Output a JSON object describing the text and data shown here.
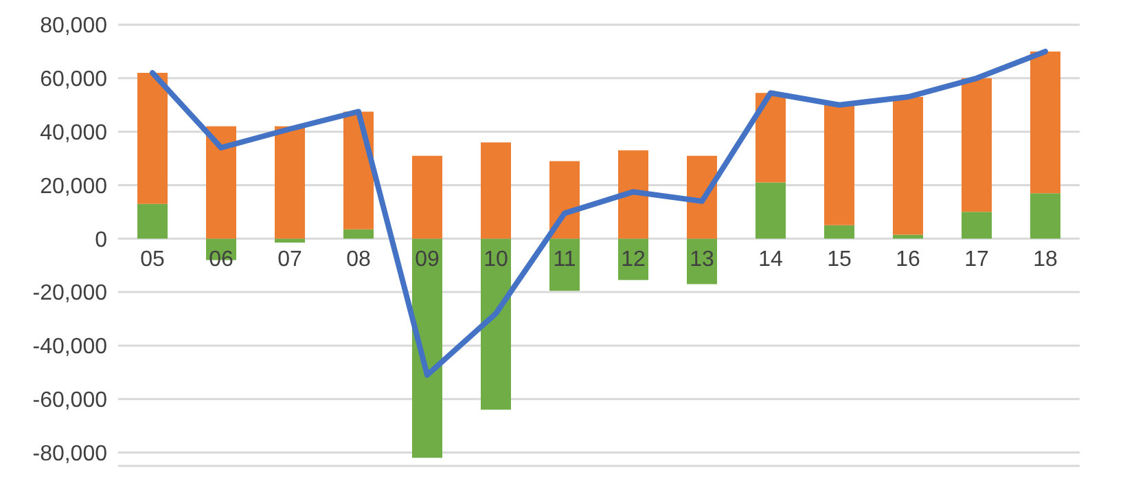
{
  "chart_data": {
    "type": "bar",
    "stacked": true,
    "grid": "y",
    "categories": [
      "05",
      "06",
      "07",
      "08",
      "09",
      "10",
      "11",
      "12",
      "13",
      "14",
      "15",
      "16",
      "17",
      "18"
    ],
    "ylim": [
      -85000,
      80000
    ],
    "yticks": [
      {
        "value": -80000,
        "label": "-80,000"
      },
      {
        "value": -60000,
        "label": "-60,000"
      },
      {
        "value": -40000,
        "label": "-40,000"
      },
      {
        "value": -20000,
        "label": "-20,000"
      },
      0,
      {
        "value": 20000,
        "label": "20,000"
      },
      {
        "value": 40000,
        "label": "40,000"
      },
      {
        "value": 60000,
        "label": "60,000"
      },
      {
        "value": 80000,
        "label": "80,000"
      }
    ],
    "series": [
      {
        "color": "#70ad47",
        "values": [
          13000,
          -8000,
          -1500,
          3500,
          -82000,
          -64000,
          -19500,
          -15500,
          -17000,
          21000,
          5000,
          1500,
          10000,
          17000
        ]
      },
      {
        "color": "#ed7d31",
        "values": [
          49000,
          42000,
          42000,
          44000,
          31000,
          36000,
          29000,
          33000,
          31000,
          33500,
          45000,
          51500,
          50000,
          53000
        ]
      },
      {
        "type": "line",
        "color": "#4472c4",
        "values": [
          62000,
          34000,
          41000,
          47500,
          -51000,
          -28000,
          9500,
          17500,
          14000,
          54500,
          50000,
          53000,
          60000,
          70000
        ]
      }
    ]
  }
}
